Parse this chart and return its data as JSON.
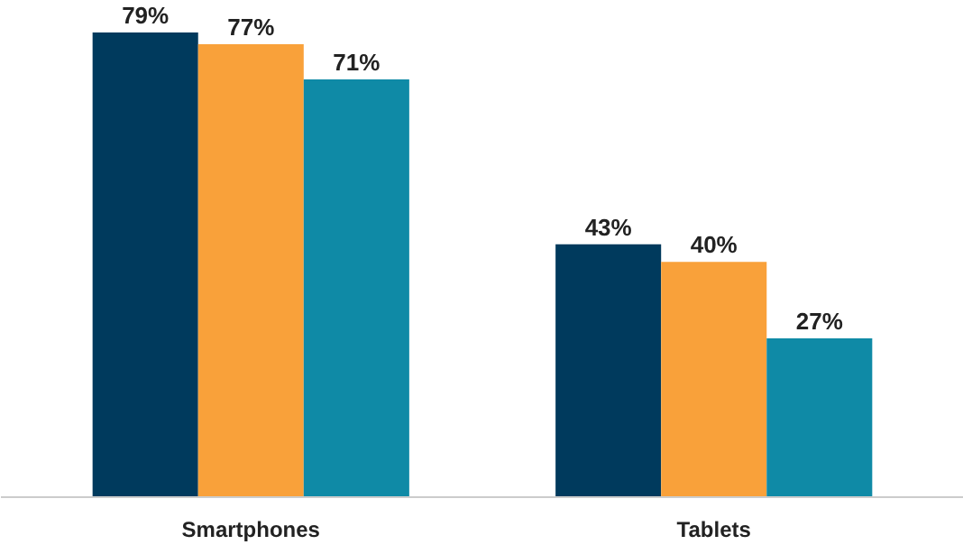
{
  "chart_data": {
    "type": "bar",
    "categories": [
      "Smartphones",
      "Tablets"
    ],
    "series": [
      {
        "color": "#003a5d",
        "values": [
          79,
          43
        ],
        "value_labels": [
          "79%",
          "43%"
        ]
      },
      {
        "color": "#f9a13a",
        "values": [
          77,
          40
        ],
        "value_labels": [
          "77%",
          "40%"
        ]
      },
      {
        "color": "#0f8aa6",
        "values": [
          71,
          27
        ],
        "value_labels": [
          "71%",
          "27%"
        ]
      }
    ],
    "grid": false
  }
}
